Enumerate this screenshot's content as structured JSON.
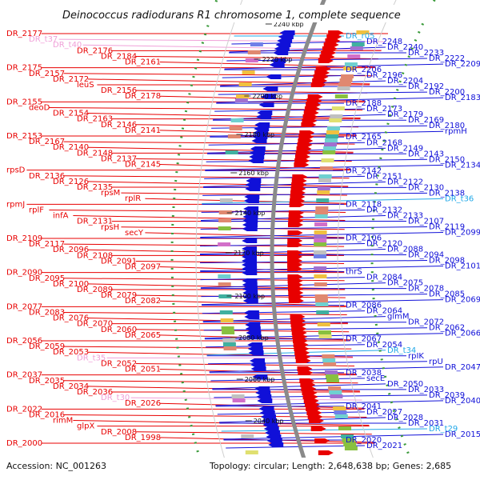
{
  "title": "Deinococcus radiodurans R1 chromosome 1, complete sequence",
  "accession": "Accession: NC_001263",
  "topology": "Topology: circular; Length: 2,648,638 bp; Genes: 2,685",
  "colors": {
    "forward": "#e80000",
    "reverse": "#1010d8",
    "trna": "#f0a0d8",
    "trna_right": "#20a8e8",
    "backbone": "#8a8a8a",
    "dots": "#3a9a3a"
  },
  "scale_ticks": [
    "2240 kbp",
    "2220 kbp",
    "2200 kbp",
    "2180 kbp",
    "2160 kbp",
    "2140 kbp",
    "2120 kbp",
    "2100 kbp",
    "2080 kbp",
    "2060 kbp",
    "2040 kbp"
  ],
  "left_labels": [
    "DR_2177",
    "DR_t37",
    "DR_t40",
    "DR_2176",
    "DR_2184",
    "DR_2161",
    "DR_2175",
    "DR_2157",
    "DR_2172",
    "leuS",
    "DR_2156",
    "DR_2178",
    "DR_2155",
    "deoD",
    "DR_2154",
    "DR_2163",
    "DR_2146",
    "DR_2141",
    "DR_2153",
    "DR_2167",
    "DR_2140",
    "DR_2148",
    "DR_2137",
    "DR_2145",
    "rpsD",
    "DR_2136",
    "DR_2126",
    "DR_2135",
    "rpsM",
    "rplR",
    "rpmJ",
    "rplF",
    "infA",
    "DR_2131",
    "rpsH",
    "secY",
    "DR_2109",
    "DR_2117",
    "DR_2096",
    "DR_2108",
    "DR_2091",
    "DR_2097",
    "DR_2090",
    "DR_2095",
    "DR_2100",
    "DR_2089",
    "DR_2079",
    "DR_2082",
    "DR_2077",
    "DR_2083",
    "DR_2076",
    "DR_2070",
    "DR_2060",
    "DR_2065",
    "DR_2056",
    "DR_2059",
    "DR_2053",
    "DR_t35",
    "DR_2052",
    "DR_2051",
    "DR_2037",
    "DR_2035",
    "DR_2034",
    "DR_2036",
    "DR_t30",
    "DR_2026",
    "DR_2022",
    "DR_2016",
    "rimM",
    "glpX",
    "DR_2008",
    "DR_1998",
    "DR_2000"
  ],
  "right_labels": [
    "DR_r05",
    "DR_2248",
    "DR_2240",
    "DR_2233",
    "DR_2222",
    "DR_2209",
    "DR_2206",
    "DR_2196",
    "DR_2204",
    "DR_2192",
    "DR_2200",
    "DR_2183",
    "DR_2188",
    "DR_2173",
    "DR_2179",
    "DR_2169",
    "DR_2180",
    "rpmH",
    "DR_2165",
    "DR_2168",
    "DR_2149",
    "DR_2143",
    "DR_2150",
    "DR_2134",
    "DR_2142",
    "DR_2151",
    "DR_2122",
    "DR_2130",
    "DR_2138",
    "DR_t36",
    "DR_2118",
    "DR_2132",
    "DR_2133",
    "DR_2107",
    "DR_2119",
    "DR_2099",
    "DR_2106",
    "DR_2120",
    "DR_2088",
    "DR_2094",
    "DR_2098",
    "DR_2101",
    "thrS",
    "DR_2084",
    "DR_2075",
    "DR_2078",
    "DR_2085",
    "DR_2069",
    "DR_2086",
    "DR_2064",
    "glmM",
    "DR_2072",
    "DR_2062",
    "DR_2066",
    "DR_2067",
    "DR_2054",
    "DR_t34",
    "rpIK",
    "rpU",
    "DR_2047",
    "DR_2038",
    "secE",
    "DR_2050",
    "DR_2033",
    "DR_2039",
    "DR_2040",
    "DR_2041",
    "DR_2027",
    "DR_2028",
    "DR_2031",
    "DR_t29",
    "DR_2015",
    "DR_2020",
    "DR_2021"
  ]
}
